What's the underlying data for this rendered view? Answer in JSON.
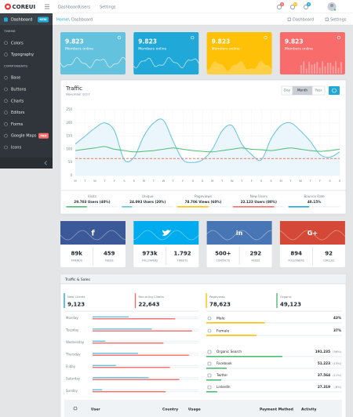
{
  "header": {
    "brand": "COREUI",
    "nav": [
      "Dashboard",
      "Users",
      "Settings"
    ],
    "badges": [
      {
        "text": "5",
        "color": "#f86c6b"
      },
      {
        "text": "25",
        "color": "#ffc107"
      },
      {
        "text": "9",
        "color": "#20a8d8"
      }
    ]
  },
  "sidebar": {
    "dashboard": {
      "label": "Dashboard",
      "badge": "NEW"
    },
    "sections": [
      {
        "title": "THEME",
        "items": [
          {
            "label": "Colors"
          },
          {
            "label": "Typography"
          }
        ]
      },
      {
        "title": "COMPONENTS",
        "items": [
          {
            "label": "Base"
          },
          {
            "label": "Buttons"
          },
          {
            "label": "Charts"
          },
          {
            "label": "Editors"
          },
          {
            "label": "Forms"
          },
          {
            "label": "Google Maps",
            "badge": "PRO"
          },
          {
            "label": "Icons"
          }
        ]
      }
    ]
  },
  "breadcrumb": {
    "items": [
      "Home",
      "Dashboard"
    ],
    "actions": [
      "Dashboard",
      "Settings"
    ]
  },
  "cards": [
    {
      "value": "9.823",
      "label": "Members online",
      "color": "#63c2de"
    },
    {
      "value": "9.823",
      "label": "Members online",
      "color": "#20a8d8"
    },
    {
      "value": "9.823",
      "label": "Members online",
      "color": "#ffc107"
    },
    {
      "value": "9.823",
      "label": "Members online",
      "color": "#f86c6b"
    }
  ],
  "traffic": {
    "title": "Traffic",
    "subtitle": "November 2017",
    "buttons": [
      "Day",
      "Month",
      "Year"
    ],
    "active_button": 1,
    "chart": {
      "type": "line",
      "categories": [
        "M",
        "T",
        "W",
        "T",
        "F",
        "S",
        "S",
        "M",
        "T",
        "W",
        "T",
        "F",
        "S",
        "S",
        "M",
        "T",
        "W",
        "T",
        "F",
        "S",
        "S",
        "M",
        "T",
        "W",
        "T",
        "F",
        "S",
        "S"
      ],
      "ylim": [
        0,
        250
      ],
      "yticks": [
        0,
        50,
        100,
        150,
        200,
        250
      ],
      "grid": true,
      "series": [
        {
          "color": "#63c2de",
          "fill": "#eaf6fb",
          "values": [
            120,
            150,
            180,
            200,
            170,
            60,
            70,
            150,
            200,
            210,
            130,
            60,
            50,
            60,
            100,
            170,
            190,
            120,
            80,
            60,
            140,
            190,
            200,
            170,
            130,
            80,
            70,
            90
          ]
        },
        {
          "color": "#4dbd74",
          "values": [
            95,
            100,
            105,
            110,
            100,
            95,
            90,
            92,
            95,
            100,
            105,
            100,
            95,
            92,
            90,
            95,
            100,
            105,
            100,
            98,
            95,
            100,
            105,
            100,
            95,
            92,
            95,
            100
          ]
        },
        {
          "color": "#f86c6b",
          "dashed": true,
          "values": [
            65,
            65,
            65,
            65,
            65,
            65,
            65,
            65,
            65,
            65,
            65,
            65,
            65,
            65,
            65,
            65,
            65,
            65,
            65,
            65,
            65,
            65,
            65,
            65,
            65,
            65,
            65,
            65
          ]
        }
      ]
    },
    "stats": [
      {
        "label": "Visits",
        "value": "29.703 Users (40%)",
        "percent": 40,
        "color": "#4dbd74"
      },
      {
        "label": "Unique",
        "value": "24.093 Users (20%)",
        "percent": 20,
        "color": "#63c2de"
      },
      {
        "label": "Pageviews",
        "value": "78.706 Views (60%)",
        "percent": 60,
        "color": "#ffc107"
      },
      {
        "label": "New Users",
        "value": "22.123 Users (80%)",
        "percent": 80,
        "color": "#f86c6b"
      },
      {
        "label": "Bounce Rate",
        "value": "40.15%",
        "percent": 40.15,
        "color": "#20a8d8"
      }
    ]
  },
  "social": [
    {
      "icon": "f",
      "color": "#3b5998",
      "stats": [
        {
          "value": "89k",
          "label": "FRIENDS"
        },
        {
          "value": "459",
          "label": "FEEDS"
        }
      ]
    },
    {
      "color": "#00aced",
      "stats": [
        {
          "value": "973k",
          "label": "FOLLOWERS"
        },
        {
          "value": "1.792",
          "label": "TWEETS"
        }
      ]
    },
    {
      "icon": "in",
      "color": "#4875b4",
      "stats": [
        {
          "value": "500+",
          "label": "CONTACTS"
        },
        {
          "value": "292",
          "label": "FEEDS"
        }
      ]
    },
    {
      "icon": "G+",
      "color": "#d34836",
      "stats": [
        {
          "value": "894",
          "label": "FOLLOWERS"
        },
        {
          "value": "92",
          "label": "CIRCLES"
        }
      ]
    }
  ],
  "sales": {
    "title": "Traffic & Sales",
    "kpis": [
      {
        "label": "New Clients",
        "value": "9,123",
        "color": "#20a8d8"
      },
      {
        "label": "Recurring Clients",
        "value": "22,643",
        "color": "#f86c6b"
      },
      {
        "label": "Pageviews",
        "value": "78,623",
        "color": "#ffc107"
      },
      {
        "label": "Organic",
        "value": "49,123",
        "color": "#4dbd74"
      }
    ],
    "days": [
      {
        "label": "Monday",
        "values": [
          34,
          78
        ]
      },
      {
        "label": "Tuesday",
        "values": [
          56,
          94
        ]
      },
      {
        "label": "Wednesday",
        "values": [
          12,
          67
        ]
      },
      {
        "label": "Thursday",
        "values": [
          43,
          91
        ]
      },
      {
        "label": "Friday",
        "values": [
          22,
          73
        ]
      },
      {
        "label": "Saturday",
        "values": [
          53,
          82
        ]
      },
      {
        "label": "Sunday",
        "values": [
          9,
          69
        ]
      }
    ],
    "day_colors": [
      "#63c2de",
      "#f86c6b"
    ],
    "gender": [
      {
        "label": "Male",
        "value": "43%",
        "percent": 43
      },
      {
        "label": "Female",
        "value": "37%",
        "percent": 37
      }
    ],
    "gender_color": "#ffc107",
    "sources": [
      {
        "label": "Organic Search",
        "value": "191.235",
        "share": "(56%)",
        "percent": 56
      },
      {
        "label": "Facebook",
        "value": "51.223",
        "share": "(15%)",
        "percent": 15
      },
      {
        "label": "Twitter",
        "value": "37.564",
        "share": "(11%)",
        "percent": 11
      },
      {
        "label": "LinkedIn",
        "value": "27.319",
        "share": "(8%)",
        "percent": 8
      }
    ],
    "source_color": "#4dbd74"
  },
  "table": {
    "columns": [
      "User",
      "Country",
      "Usage",
      "Payment Method",
      "Activity"
    ]
  }
}
